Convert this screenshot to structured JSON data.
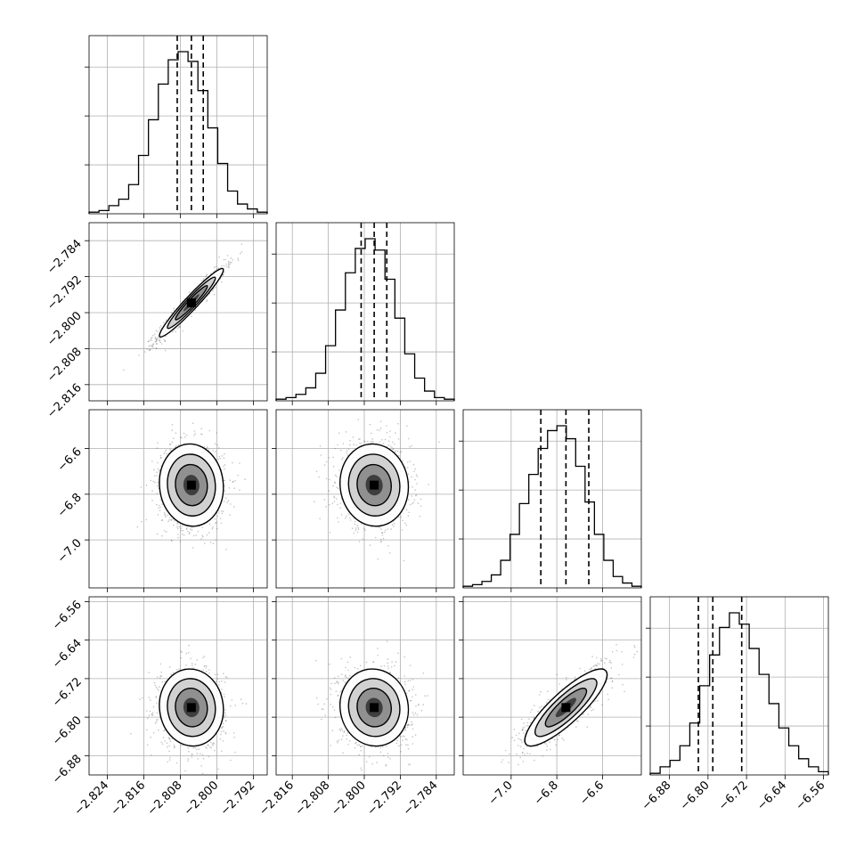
{
  "chart_data": {
    "type": "corner",
    "grid": true,
    "variables": [
      {
        "range": [
          -2.828,
          -2.789
        ],
        "ticks": [
          -2.824,
          -2.816,
          -2.808,
          -2.8,
          -2.792
        ],
        "tick_labels": [
          "−2.824",
          "−2.816",
          "−2.808",
          "−2.800",
          "−2.792"
        ],
        "quantiles": [
          -2.8087,
          -2.8056,
          -2.803
        ],
        "hist": [
          0.01,
          0.02,
          0.05,
          0.09,
          0.18,
          0.36,
          0.58,
          0.8,
          0.95,
          1.0,
          0.94,
          0.76,
          0.53,
          0.31,
          0.14,
          0.06,
          0.03,
          0.01
        ]
      },
      {
        "range": [
          -2.8196,
          -2.78
        ],
        "ticks": [
          -2.816,
          -2.808,
          -2.8,
          -2.792,
          -2.784
        ],
        "tick_labels": [
          "−2.816",
          "−2.808",
          "−2.800",
          "−2.792",
          "−2.784"
        ],
        "quantiles": [
          -2.8007,
          -2.7978,
          -2.795
        ],
        "hist": [
          0.01,
          0.02,
          0.04,
          0.08,
          0.17,
          0.34,
          0.56,
          0.79,
          0.94,
          1.0,
          0.93,
          0.75,
          0.51,
          0.29,
          0.14,
          0.06,
          0.02,
          0.01
        ]
      },
      {
        "range": [
          -7.21,
          -6.43
        ],
        "ticks": [
          -7.0,
          -6.8,
          -6.6
        ],
        "tick_labels": [
          "−7.0",
          "−6.8",
          "−6.6"
        ],
        "quantiles": [
          -6.87,
          -6.76,
          -6.66
        ],
        "hist": [
          0.01,
          0.02,
          0.04,
          0.08,
          0.17,
          0.33,
          0.52,
          0.7,
          0.86,
          0.97,
          1.0,
          0.92,
          0.75,
          0.53,
          0.33,
          0.17,
          0.07,
          0.03,
          0.01
        ]
      },
      {
        "range": [
          -6.92,
          -6.55
        ],
        "ticks": [
          -6.88,
          -6.8,
          -6.72,
          -6.64,
          -6.56
        ],
        "tick_labels": [
          "−6.88",
          "−6.80",
          "−6.72",
          "−6.64",
          "−6.56"
        ],
        "quantiles": [
          -6.82,
          -6.79,
          -6.73
        ],
        "hist": [
          0.01,
          0.05,
          0.09,
          0.18,
          0.32,
          0.55,
          0.74,
          0.91,
          1.0,
          0.93,
          0.78,
          0.62,
          0.44,
          0.29,
          0.18,
          0.1,
          0.05,
          0.02
        ]
      }
    ],
    "pairs": [
      {
        "x": 0,
        "y": 1,
        "center": [
          -2.8056,
          -2.7978
        ],
        "sigma": [
          0.0035,
          0.0038
        ],
        "rho": 0.96
      },
      {
        "x": 0,
        "y": 2,
        "center": [
          -2.8056,
          -6.76
        ],
        "sigma": [
          0.0035,
          0.09
        ],
        "rho": -0.05
      },
      {
        "x": 1,
        "y": 2,
        "center": [
          -2.7978,
          -6.76
        ],
        "sigma": [
          0.0038,
          0.09
        ],
        "rho": -0.05
      },
      {
        "x": 0,
        "y": 3,
        "center": [
          -2.8056,
          -6.78
        ],
        "sigma": [
          0.0035,
          0.04
        ],
        "rho": -0.05
      },
      {
        "x": 1,
        "y": 3,
        "center": [
          -2.7978,
          -6.78
        ],
        "sigma": [
          0.0038,
          0.04
        ],
        "rho": -0.05
      },
      {
        "x": 2,
        "y": 3,
        "center": [
          -6.76,
          -6.78
        ],
        "sigma": [
          0.09,
          0.04
        ],
        "rho": 0.85
      }
    ],
    "colors": {
      "line": "#000000",
      "grid": "#b0b0b0",
      "points": "#555555"
    }
  }
}
